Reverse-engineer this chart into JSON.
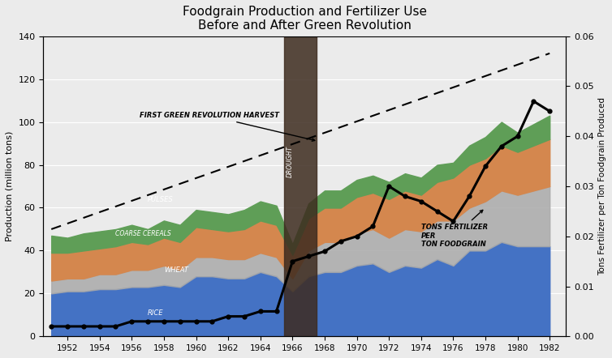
{
  "title": "Foodgrain Production and Fertilizer Use\nBefore and After Green Revolution",
  "ylabel_left": "Production (million tons)",
  "ylabel_right": "Tons Fertilizer per Ton Foodgrain Produced",
  "years": [
    1951,
    1952,
    1953,
    1954,
    1955,
    1956,
    1957,
    1958,
    1959,
    1960,
    1961,
    1962,
    1963,
    1964,
    1965,
    1966,
    1967,
    1968,
    1969,
    1970,
    1971,
    1972,
    1973,
    1974,
    1975,
    1976,
    1977,
    1978,
    1979,
    1980,
    1981,
    1982
  ],
  "rice": [
    20,
    21,
    21,
    22,
    22,
    23,
    23,
    24,
    23,
    28,
    28,
    27,
    27,
    30,
    28,
    21,
    28,
    30,
    30,
    33,
    34,
    30,
    33,
    32,
    36,
    33,
    40,
    40,
    44,
    42,
    42,
    42
  ],
  "wheat": [
    6,
    6,
    6,
    7,
    7,
    8,
    8,
    9,
    8,
    9,
    9,
    9,
    9,
    9,
    9,
    6,
    12,
    14,
    14,
    15,
    16,
    16,
    17,
    17,
    18,
    21,
    20,
    23,
    24,
    24,
    26,
    28
  ],
  "coarse_cereals": [
    13,
    12,
    13,
    12,
    13,
    13,
    12,
    13,
    13,
    14,
    13,
    13,
    14,
    15,
    15,
    11,
    15,
    16,
    16,
    17,
    17,
    18,
    18,
    17,
    18,
    20,
    20,
    20,
    21,
    20,
    21,
    22
  ],
  "pulses": [
    8,
    7,
    8,
    8,
    8,
    8,
    7,
    8,
    8,
    8,
    8,
    8,
    9,
    9,
    9,
    5,
    7,
    8,
    8,
    8,
    8,
    8,
    8,
    8,
    8,
    7,
    9,
    10,
    11,
    9,
    10,
    11
  ],
  "fertilizer_ratio": [
    0.002,
    0.002,
    0.002,
    0.002,
    0.002,
    0.003,
    0.003,
    0.003,
    0.003,
    0.003,
    0.003,
    0.004,
    0.004,
    0.005,
    0.005,
    0.015,
    0.016,
    0.017,
    0.019,
    0.02,
    0.022,
    0.03,
    0.028,
    0.027,
    0.025,
    0.023,
    0.028,
    0.034,
    0.038,
    0.04,
    0.047,
    0.045
  ],
  "trend_x": [
    1951,
    1982
  ],
  "trend_y": [
    50,
    132
  ],
  "drought_x1": 1965.5,
  "drought_x2": 1967.5,
  "color_rice": "#4472C4",
  "color_wheat": "#A9A9A9",
  "color_coarse": "#D4874E",
  "color_pulses": "#5F9E57",
  "color_drought_bar": "#3D2B1F",
  "background_color": "#EBEBEB",
  "ylim_left": [
    0,
    140
  ],
  "ylim_right": [
    0,
    0.06
  ],
  "xlim": [
    1950.5,
    1983.0
  ]
}
